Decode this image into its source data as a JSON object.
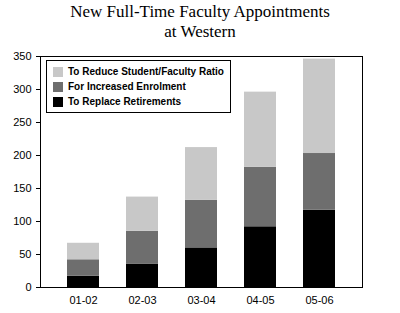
{
  "chart_data": {
    "type": "bar",
    "title": "New Full-Time Faculty Appointments at Western",
    "categories": [
      "01-02",
      "02-03",
      "03-04",
      "04-05",
      "05-06"
    ],
    "series": [
      {
        "name": "To Replace Retirements",
        "color": "#000000",
        "values": [
          17,
          35,
          60,
          92,
          117
        ]
      },
      {
        "name": "For Increased Enrolment",
        "color": "#6e6e6e",
        "values": [
          25,
          50,
          72,
          90,
          86
        ]
      },
      {
        "name": "To Reduce Student/Faculty Ratio",
        "color": "#c8c8c8",
        "values": [
          25,
          52,
          80,
          114,
          143
        ]
      }
    ],
    "stacked": true,
    "legend": "top-left",
    "grid": false,
    "ylim": [
      0,
      350
    ],
    "yticks": [
      0,
      50,
      100,
      150,
      200,
      250,
      300,
      350
    ]
  }
}
